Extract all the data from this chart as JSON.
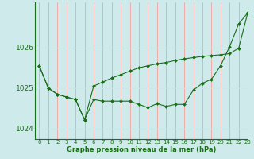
{
  "bg_color": "#ceeaea",
  "grid_color_v": "#f5a0a0",
  "grid_color_h": "#c8e8e8",
  "line_color": "#1a6e1a",
  "xlabel": "Graphe pression niveau de la mer (hPa)",
  "ylim": [
    1023.75,
    1027.1
  ],
  "xlim": [
    -0.5,
    23
  ],
  "yticks": [
    1024,
    1025,
    1026
  ],
  "xticks": [
    0,
    1,
    2,
    3,
    4,
    5,
    6,
    7,
    8,
    9,
    10,
    11,
    12,
    13,
    14,
    15,
    16,
    17,
    18,
    19,
    20,
    21,
    22,
    23
  ],
  "series1": [
    1025.55,
    1025.0,
    1024.85,
    1024.78,
    1024.72,
    1024.22,
    1024.72,
    1024.68,
    1024.68,
    1024.68,
    1024.68,
    1024.6,
    1024.52,
    1024.62,
    1024.55,
    1024.6,
    1024.6,
    1024.95,
    1025.12,
    1025.22,
    1025.55,
    1026.02,
    1026.58,
    1026.85
  ],
  "series2": [
    1025.55,
    1025.0,
    1024.85,
    1024.78,
    1024.72,
    1024.22,
    1025.05,
    1025.15,
    1025.25,
    1025.33,
    1025.42,
    1025.5,
    1025.55,
    1025.6,
    1025.63,
    1025.68,
    1025.72,
    1025.75,
    1025.78,
    1025.8,
    1025.82,
    1025.85,
    1025.98,
    1026.85
  ],
  "xlabel_fontsize": 6.0,
  "ytick_fontsize": 6.5,
  "xtick_fontsize": 5.0
}
